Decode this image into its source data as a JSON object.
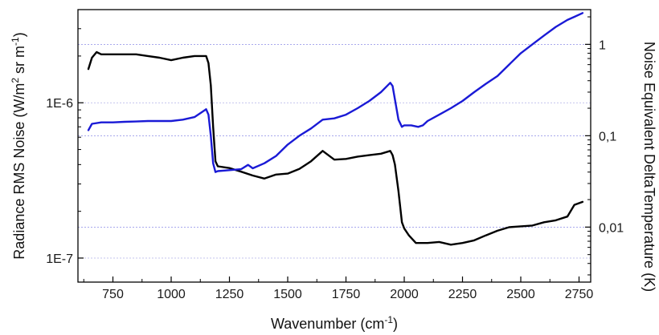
{
  "chart_data": {
    "type": "line",
    "title": "",
    "xlabel": "Wavenumber (cm",
    "xlabel_sup": "-1",
    "xlabel_end": ")",
    "ylabel_left": "Radiance RMS Noise (W/m",
    "ylabel_left_sup1": "2",
    "ylabel_left_mid": " sr m",
    "ylabel_left_sup2": "-1",
    "ylabel_left_end": ")",
    "ylabel_right": "Noise Equivalent DeltaTemperature (K)",
    "xlim": [
      600,
      2800
    ],
    "ylim_left": [
      7e-08,
      3.98e-06
    ],
    "ylim_right": [
      0.0025,
      2.4
    ],
    "yscale": "log",
    "grid": "dotted horizontal at right-axis ticks",
    "x_ticks": [
      {
        "value": 750,
        "label": "750"
      },
      {
        "value": 1000,
        "label": "1000"
      },
      {
        "value": 1250,
        "label": "1250"
      },
      {
        "value": 1500,
        "label": "1500"
      },
      {
        "value": 1750,
        "label": "1750"
      },
      {
        "value": 2000,
        "label": "2000"
      },
      {
        "value": 2250,
        "label": "2250"
      },
      {
        "value": 2500,
        "label": "2500"
      },
      {
        "value": 2750,
        "label": "2750"
      }
    ],
    "y_left_ticks": [
      {
        "value": 1e-06,
        "label": "1E-6"
      },
      {
        "value": 1e-07,
        "label": "1E-7"
      }
    ],
    "y_right_ticks": [
      {
        "value": 1,
        "label": "1"
      },
      {
        "value": 0.1,
        "label": "0,1"
      },
      {
        "value": 0.01,
        "label": "0,01"
      }
    ],
    "series": [
      {
        "axis": "left",
        "color": "#000000",
        "x": [
          645,
          660,
          680,
          700,
          750,
          800,
          850,
          900,
          950,
          1000,
          1050,
          1100,
          1130,
          1150,
          1160,
          1170,
          1180,
          1190,
          1200,
          1250,
          1300,
          1350,
          1400,
          1450,
          1500,
          1550,
          1600,
          1650,
          1700,
          1750,
          1800,
          1850,
          1900,
          1940,
          1950,
          1960,
          1975,
          1990,
          2000,
          2020,
          2050,
          2100,
          2150,
          2200,
          2250,
          2300,
          2350,
          2400,
          2450,
          2500,
          2550,
          2600,
          2650,
          2700,
          2730,
          2765
        ],
        "y": [
          1.65e-06,
          1.95e-06,
          2.12e-06,
          2.05e-06,
          2.05e-06,
          2.05e-06,
          2.05e-06,
          2e-06,
          1.95e-06,
          1.88e-06,
          1.95e-06,
          2e-06,
          2e-06,
          2e-06,
          1.8e-06,
          1.3e-06,
          7e-07,
          4.2e-07,
          3.9e-07,
          3.8e-07,
          3.6e-07,
          3.4e-07,
          3.25e-07,
          3.45e-07,
          3.5e-07,
          3.75e-07,
          4.2e-07,
          4.9e-07,
          4.3e-07,
          4.35e-07,
          4.5e-07,
          4.6e-07,
          4.7e-07,
          4.9e-07,
          4.6e-07,
          4e-07,
          2.7e-07,
          1.7e-07,
          1.55e-07,
          1.4e-07,
          1.25e-07,
          1.25e-07,
          1.27e-07,
          1.22e-07,
          1.25e-07,
          1.3e-07,
          1.4e-07,
          1.5e-07,
          1.58e-07,
          1.6e-07,
          1.62e-07,
          1.7e-07,
          1.75e-07,
          1.85e-07,
          2.2e-07,
          2.3e-07
        ]
      },
      {
        "axis": "right",
        "color": "#1a1ad6",
        "x": [
          645,
          660,
          700,
          750,
          800,
          850,
          900,
          950,
          1000,
          1050,
          1100,
          1130,
          1150,
          1160,
          1170,
          1180,
          1190,
          1200,
          1250,
          1300,
          1330,
          1350,
          1400,
          1450,
          1500,
          1550,
          1600,
          1650,
          1700,
          1750,
          1800,
          1850,
          1900,
          1940,
          1950,
          1960,
          1975,
          1990,
          2000,
          2030,
          2060,
          2080,
          2100,
          2150,
          2200,
          2250,
          2300,
          2350,
          2400,
          2450,
          2500,
          2550,
          2600,
          2650,
          2700,
          2730,
          2765
        ],
        "y": [
          0.115,
          0.135,
          0.14,
          0.14,
          0.142,
          0.143,
          0.145,
          0.145,
          0.145,
          0.15,
          0.16,
          0.18,
          0.195,
          0.17,
          0.1,
          0.05,
          0.04,
          0.041,
          0.042,
          0.043,
          0.048,
          0.044,
          0.05,
          0.06,
          0.08,
          0.1,
          0.12,
          0.15,
          0.155,
          0.17,
          0.2,
          0.24,
          0.3,
          0.38,
          0.35,
          0.25,
          0.15,
          0.125,
          0.13,
          0.13,
          0.125,
          0.13,
          0.145,
          0.17,
          0.2,
          0.24,
          0.3,
          0.37,
          0.45,
          0.6,
          0.8,
          1.0,
          1.25,
          1.55,
          1.85,
          2.0,
          2.2
        ]
      }
    ]
  }
}
